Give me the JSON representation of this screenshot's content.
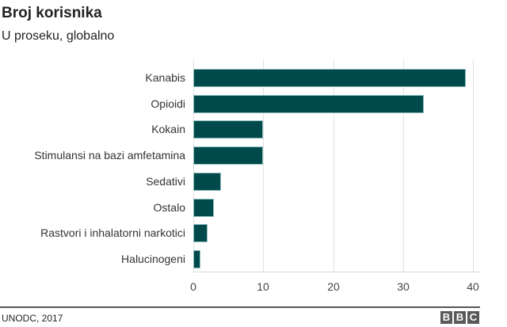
{
  "header": {
    "title": "Broj korisnika",
    "subtitle": "U proseku, globalno"
  },
  "footer": {
    "source": "UNODC, 2017",
    "logo_letters": [
      "B",
      "B",
      "C"
    ]
  },
  "colors": {
    "bar": "#004a4b",
    "bar_border": "#8fbdbd",
    "grid": "#e2e2e2",
    "text": "#222222"
  },
  "chart_data": {
    "type": "bar",
    "orientation": "horizontal",
    "title": "Broj korisnika",
    "subtitle": "U proseku, globalno",
    "categories": [
      "Kanabis",
      "Opioidi",
      "Kokain",
      "Stimulansi na bazi amfetamina",
      "Sedativi",
      "Ostalo",
      "Rastvori i inhalatorni narkotici",
      "Halucinogeni"
    ],
    "values": [
      39,
      33,
      10,
      10,
      4,
      3,
      2,
      1
    ],
    "xlabel": "",
    "ylabel": "",
    "xlim": [
      0,
      40
    ],
    "xticks": [
      0,
      10,
      20,
      30,
      40
    ],
    "grid": true,
    "legend": null,
    "source": "UNODC, 2017"
  }
}
